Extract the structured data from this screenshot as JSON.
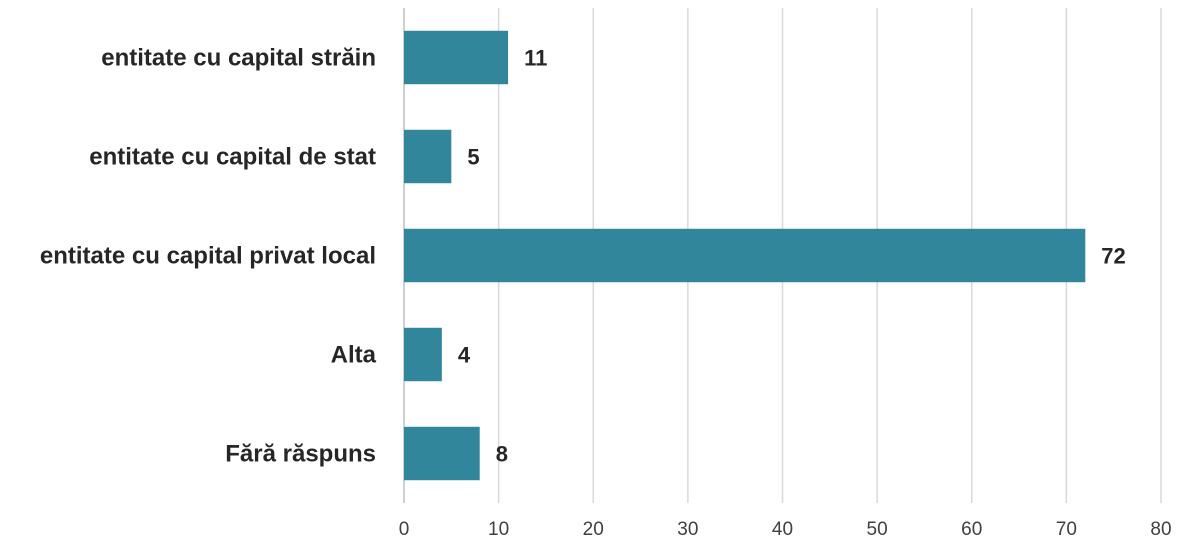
{
  "chart_data": {
    "type": "bar",
    "orientation": "horizontal",
    "title": "",
    "xlabel": "",
    "ylabel": "",
    "categories": [
      "entitate cu capital străin",
      "entitate cu capital de stat",
      "entitate cu capital privat local",
      "Alta",
      "Fără răspuns"
    ],
    "values": [
      11,
      5,
      72,
      4,
      8
    ],
    "xlim": [
      0,
      80
    ],
    "xticks": [
      0,
      10,
      20,
      30,
      40,
      50,
      60,
      70,
      80
    ],
    "grid": true,
    "legend": "none",
    "bar_color": "#31869b"
  }
}
